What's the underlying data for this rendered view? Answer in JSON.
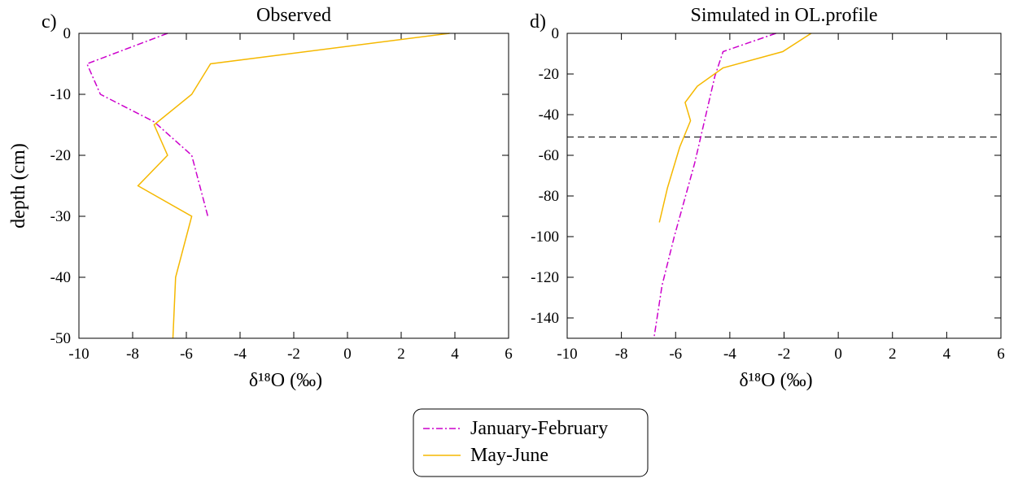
{
  "chart_data": [
    {
      "type": "line",
      "panel_label": "c)",
      "title": "Observed",
      "x_label": "δ¹⁸O (‰)",
      "y_label": "depth (cm)",
      "xlim": [
        -10,
        6
      ],
      "xticks": [
        -10,
        -8,
        -6,
        -4,
        -2,
        0,
        2,
        4,
        6
      ],
      "ylim": [
        -50,
        0
      ],
      "yticks": [
        0,
        -10,
        -20,
        -30,
        -40,
        -50
      ],
      "series": [
        {
          "name": "January-February",
          "color": "#cc00cc",
          "dash": "dashdot",
          "x": [
            -6.7,
            -9.7,
            -9.2,
            -7.2,
            -5.8,
            -5.2
          ],
          "values": [
            0,
            -5,
            -10,
            -14.5,
            -20,
            -30
          ]
        },
        {
          "name": "May-June",
          "color": "#f5b800",
          "dash": "solid",
          "x": [
            3.8,
            -5.1,
            -5.8,
            -7.2,
            -6.7,
            -7.8,
            -5.8,
            -6.4,
            -6.5
          ],
          "values": [
            0,
            -5,
            -10,
            -15,
            -20,
            -25,
            -30,
            -40,
            -50
          ]
        }
      ]
    },
    {
      "type": "line",
      "panel_label": "d)",
      "title": "Simulated in OL.profile",
      "x_label": "δ¹⁸O (‰)",
      "xlim": [
        -10,
        6
      ],
      "xticks": [
        -10,
        -8,
        -6,
        -4,
        -2,
        0,
        2,
        4,
        6
      ],
      "ylim": [
        -150,
        0
      ],
      "yticks": [
        0,
        -20,
        -40,
        -60,
        -80,
        -100,
        -120,
        -140
      ],
      "hlines": [
        -51
      ],
      "series": [
        {
          "name": "January-February",
          "color": "#cc00cc",
          "dash": "dashdot",
          "x": [
            -2.3,
            -4.25,
            -4.55,
            -5.3,
            -6.05,
            -6.5,
            -6.8
          ],
          "values": [
            0,
            -9,
            -21,
            -64,
            -100,
            -124,
            -150
          ]
        },
        {
          "name": "May-June",
          "color": "#f5b800",
          "dash": "solid",
          "x": [
            -1.0,
            -2.05,
            -4.25,
            -5.2,
            -5.65,
            -5.45,
            -5.85,
            -6.3,
            -6.6
          ],
          "values": [
            0,
            -9,
            -17,
            -26,
            -34,
            -43,
            -56,
            -76,
            -93
          ]
        }
      ]
    }
  ]
}
